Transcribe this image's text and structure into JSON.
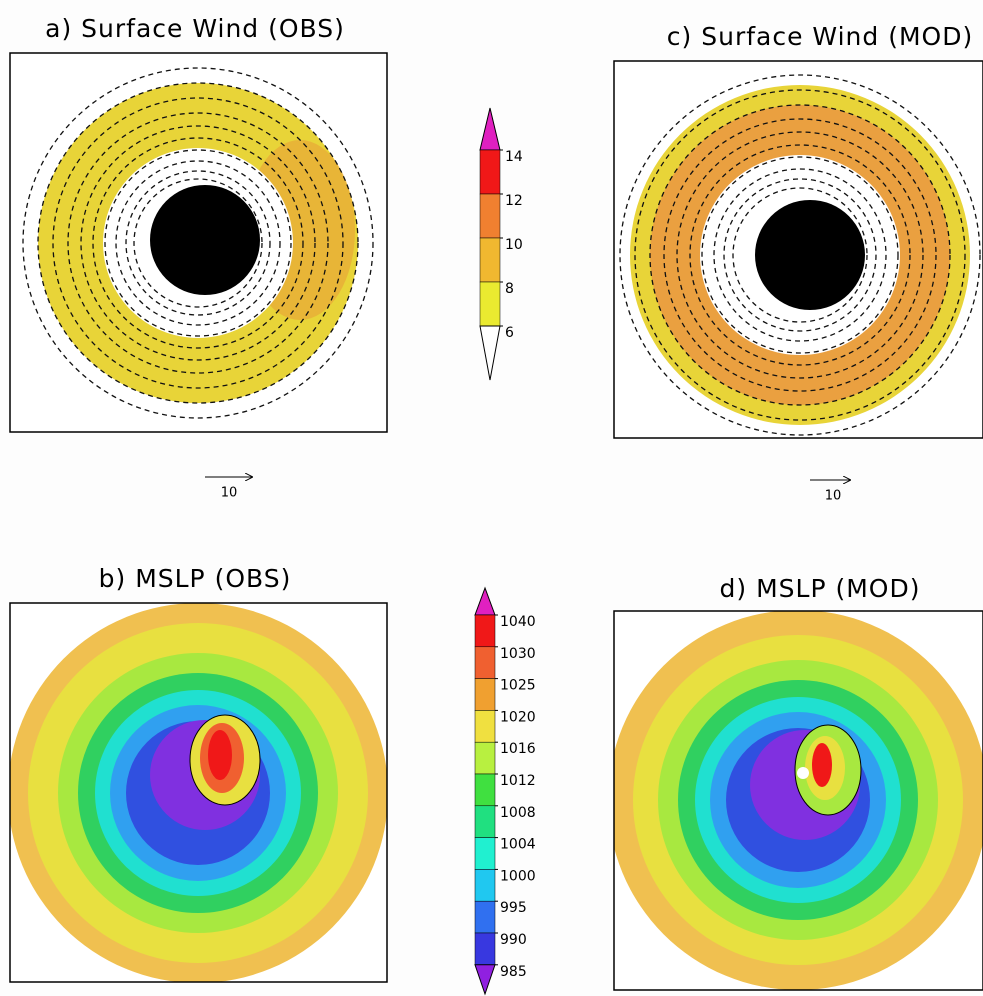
{
  "panels": [
    {
      "title": "a) Surface Wind (OBS)",
      "vector_key": "10"
    },
    {
      "title": "c) Surface Wind (MOD)",
      "vector_key": "10"
    },
    {
      "title": "b) MSLP (OBS)"
    },
    {
      "title": "d) MSLP (MOD)"
    }
  ],
  "colorbars": [
    {
      "ticks": [
        14,
        12,
        10,
        8,
        6
      ],
      "colors": [
        "#e020c0",
        "#f01818",
        "#f08030",
        "#f0b830",
        "#eaea30",
        "#ffffff"
      ]
    },
    {
      "ticks": [
        1040,
        1030,
        1025,
        1020,
        1016,
        1012,
        1008,
        1004,
        1000,
        995,
        990,
        985
      ],
      "colors": [
        "#e020c0",
        "#f01818",
        "#f06030",
        "#f0a030",
        "#f0e040",
        "#b8f040",
        "#40e040",
        "#20e080",
        "#20f0d0",
        "#20c8f0",
        "#3070f0",
        "#3838e0",
        "#9020e0"
      ]
    }
  ]
}
